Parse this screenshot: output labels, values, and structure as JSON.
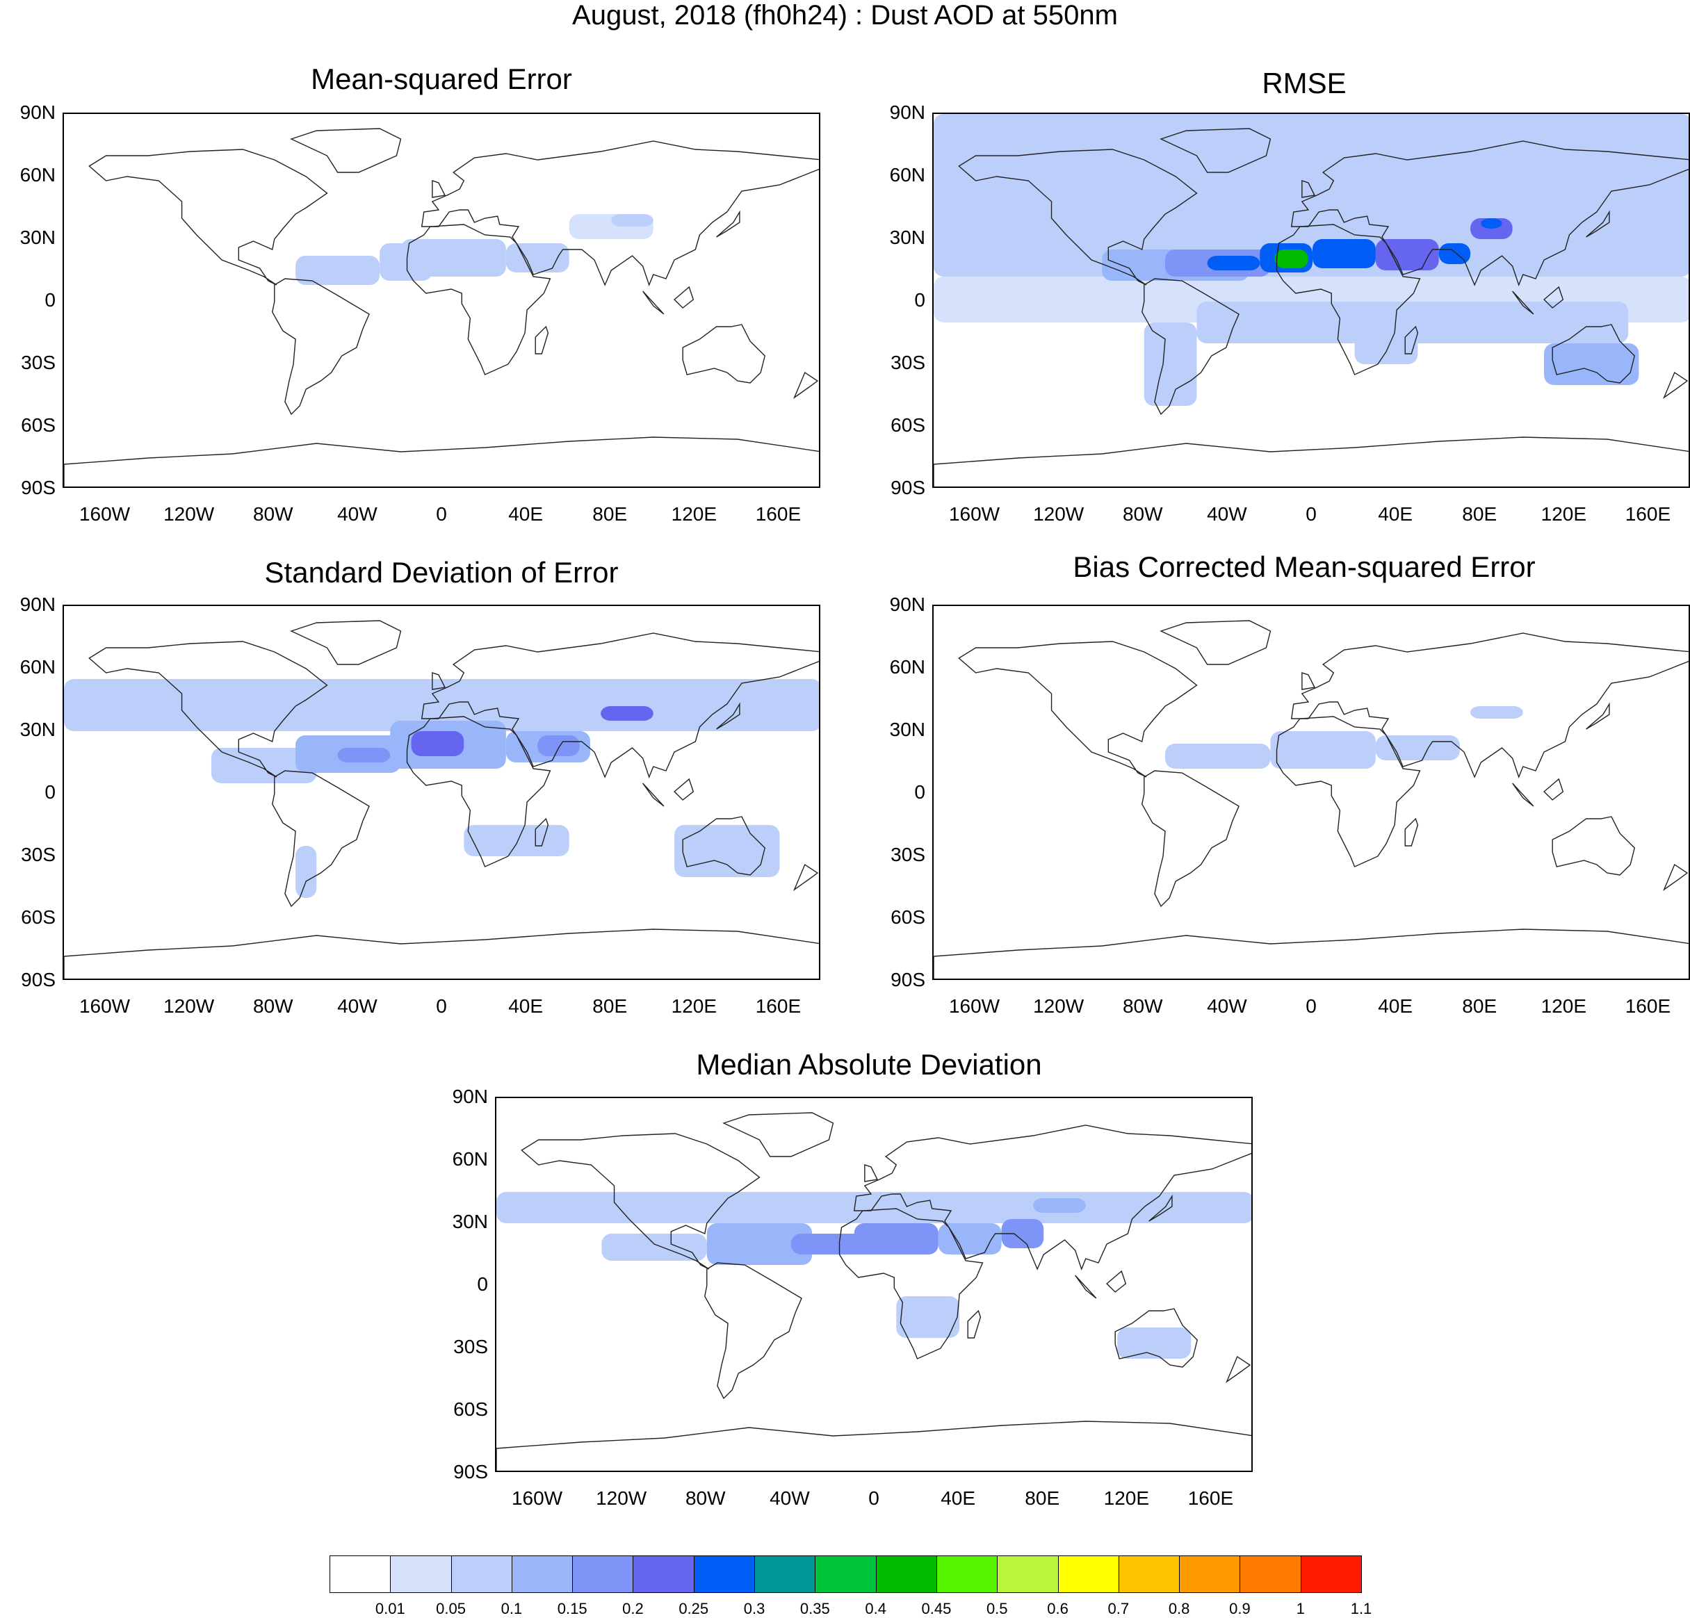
{
  "title": "August, 2018 (fh0h24) : Dust AOD at 550nm",
  "panels": [
    {
      "id": "mse",
      "title": "Mean-squared Error"
    },
    {
      "id": "rmse",
      "title": "RMSE"
    },
    {
      "id": "sde",
      "title": "Standard Deviation of Error"
    },
    {
      "id": "bcmse",
      "title": "Bias Corrected Mean-squared Error"
    },
    {
      "id": "mad",
      "title": "Median Absolute Deviation"
    }
  ],
  "axes": {
    "lat_labels": [
      "90N",
      "60N",
      "30N",
      "0",
      "30S",
      "60S",
      "90S"
    ],
    "lon_labels": [
      "160W",
      "120W",
      "80W",
      "40W",
      "0",
      "40E",
      "80E",
      "120E",
      "160E"
    ]
  },
  "chart_data": {
    "type": "heatmap",
    "variable": "Dust AOD at 550nm",
    "period": "August, 2018 (fh0h24)",
    "lat_range": [
      -90,
      90
    ],
    "lon_range": [
      -180,
      180
    ],
    "colorbar": {
      "levels": [
        "0.01",
        "0.05",
        "0.1",
        "0.15",
        "0.2",
        "0.25",
        "0.3",
        "0.35",
        "0.4",
        "0.45",
        "0.5",
        "0.6",
        "0.7",
        "0.8",
        "0.9",
        "1",
        "1.1"
      ],
      "colors": [
        "#ffffff",
        "#d6e1fb",
        "#bccffa",
        "#99b6fa",
        "#7f94f7",
        "#6565ef",
        "#005df5",
        "#009696",
        "#00c43c",
        "#00bb00",
        "#55f500",
        "#bbf53a",
        "#ffff00",
        "#ffc400",
        "#ff9b00",
        "#ff7a00",
        "#ff1a00"
      ]
    },
    "series": [
      {
        "panel": "Mean-squared Error",
        "max_level": "0.1",
        "regions": [
          {
            "area": "North Atlantic / Saharan dust belt",
            "value": 0.05
          },
          {
            "area": "Sahara / Arabian Peninsula",
            "value": 0.05
          },
          {
            "area": "Central Asia",
            "value": 0.01
          }
        ]
      },
      {
        "panel": "RMSE",
        "max_level": "0.45",
        "regions": [
          {
            "area": "Northern Hemisphere background",
            "value": 0.05
          },
          {
            "area": "Southern Hemisphere tropics background",
            "value": 0.05
          },
          {
            "area": "Tropical North Atlantic dust plume",
            "value": 0.25
          },
          {
            "area": "West Sahara",
            "value": 0.4
          },
          {
            "area": "Arabian Sea / India",
            "value": 0.25
          },
          {
            "area": "Taklamakan",
            "value": 0.2
          },
          {
            "area": "Australia",
            "value": 0.1
          }
        ]
      },
      {
        "panel": "Standard Deviation of Error",
        "max_level": "0.25",
        "regions": [
          {
            "area": "Northern Hemisphere mid latitudes",
            "value": 0.05
          },
          {
            "area": "North Atlantic dust plume",
            "value": 0.15
          },
          {
            "area": "Sahara",
            "value": 0.2
          },
          {
            "area": "Arabian Sea",
            "value": 0.15
          },
          {
            "area": "Taklamakan",
            "value": 0.2
          },
          {
            "area": "Australia / South Pacific",
            "value": 0.05
          }
        ]
      },
      {
        "panel": "Bias Corrected Mean-squared Error",
        "max_level": "0.1",
        "regions": [
          {
            "area": "North Atlantic / Sahara",
            "value": 0.05
          },
          {
            "area": "Taklamakan",
            "value": 0.05
          }
        ]
      },
      {
        "panel": "Median Absolute Deviation",
        "max_level": "0.2",
        "regions": [
          {
            "area": "Northern Hemisphere subtropics",
            "value": 0.05
          },
          {
            "area": "Caribbean / North Atlantic",
            "value": 0.1
          },
          {
            "area": "Sahara",
            "value": 0.15
          },
          {
            "area": "Arabian Sea / India",
            "value": 0.15
          },
          {
            "area": "Southern Africa",
            "value": 0.05
          },
          {
            "area": "Australia",
            "value": 0.05
          }
        ]
      }
    ]
  }
}
